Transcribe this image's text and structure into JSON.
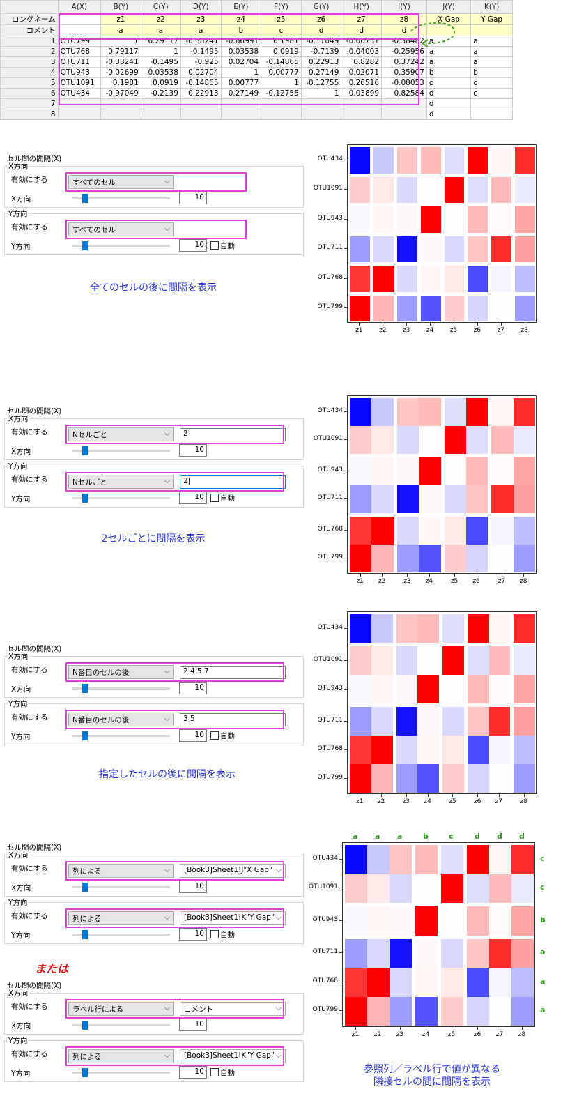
{
  "sheet": {
    "columns": [
      "A(X)",
      "B(Y)",
      "C(Y)",
      "D(Y)",
      "E(Y)",
      "F(Y)",
      "G(Y)",
      "H(Y)",
      "I(Y)",
      "J(Y)",
      "K(Y)"
    ],
    "longname_label": "ロングネーム",
    "comment_label": "コメント",
    "longnames": [
      "",
      "z1",
      "z2",
      "z3",
      "z4",
      "z5",
      "z6",
      "z7",
      "z8",
      "X Gap",
      "Y Gap"
    ],
    "comments": [
      "",
      "a",
      "a",
      "a",
      "b",
      "c",
      "d",
      "d",
      "d",
      "",
      ""
    ],
    "rows": [
      {
        "n": "1",
        "cells": [
          "OTU799",
          "1",
          "0.29117",
          "-0.38241",
          "-0.66991",
          "0.1981",
          "-0.17049",
          "-0.00731",
          "-0.38482",
          "a",
          "a"
        ]
      },
      {
        "n": "2",
        "cells": [
          "OTU768",
          "0.79117",
          "1",
          "-0.1495",
          "0.03538",
          "0.0919",
          "-0.7139",
          "-0.04003",
          "-0.25956",
          "a",
          "a"
        ]
      },
      {
        "n": "3",
        "cells": [
          "OTU711",
          "-0.38241",
          "-0.1495",
          "-0.925",
          "0.02704",
          "-0.14865",
          "0.22913",
          "0.8282",
          "0.37242",
          "a",
          "a"
        ]
      },
      {
        "n": "4",
        "cells": [
          "OTU943",
          "-0.02699",
          "0.03538",
          "0.02704",
          "1",
          "0.00777",
          "0.27149",
          "0.02071",
          "0.35907",
          "b",
          "b"
        ]
      },
      {
        "n": "5",
        "cells": [
          "OTU1091",
          "0.1981",
          "0.0919",
          "-0.14865",
          "0.00777",
          "1",
          "-0.12755",
          "0.26516",
          "-0.08053",
          "c",
          "c"
        ]
      },
      {
        "n": "6",
        "cells": [
          "OTU434",
          "-0.97049",
          "-0.2139",
          "0.22913",
          "0.27149",
          "-0.12755",
          "1",
          "0.03899",
          "0.82584",
          "d",
          "c"
        ]
      },
      {
        "n": "7",
        "cells": [
          "",
          "",
          "",
          "",
          "",
          "",
          "",
          "",
          "",
          "d",
          ""
        ]
      },
      {
        "n": "8",
        "cells": [
          "",
          "",
          "",
          "",
          "",
          "",
          "",
          "",
          "",
          "d",
          ""
        ]
      }
    ]
  },
  "dialog": {
    "title": "セル間の間隔(X)",
    "x_group": "X方向",
    "y_group": "Y方向",
    "enable_label": "有効にする",
    "x_dir": "X方向",
    "y_dir": "Y方向",
    "auto": "自動",
    "gap_value": "10"
  },
  "panels": [
    {
      "x_mode": "すべてのセル",
      "x_extra": "",
      "y_mode": "すべてのセル",
      "y_extra": ""
    },
    {
      "x_mode": "Nセルごと",
      "x_extra": "2",
      "y_mode": "Nセルごと",
      "y_extra": "2|"
    },
    {
      "x_mode": "N番目のセルの後",
      "x_extra": "2 4 5 7",
      "y_mode": "N番目のセルの後",
      "y_extra": "3 5"
    },
    {
      "x_mode": "列による",
      "x_extra": "[Book3]Sheet1!J\"X Gap\"",
      "y_mode": "列による",
      "y_extra": "[Book3]Sheet1!K\"Y Gap\""
    },
    {
      "x_mode": "ラベル行による",
      "x_extra": "コメント",
      "y_mode": "列による",
      "y_extra": "[Book3]Sheet1!K\"Y Gap\""
    }
  ],
  "captions": {
    "c1": "全てのセルの後に間隔を表示",
    "c2": "2セルごとに間隔を表示",
    "c3": "指定したセルの後に間隔を表示",
    "c4_line1": "参照列／ラベル行で値が異なる",
    "c4_line2": "隣接セルの間に間隔を表示",
    "or": "または"
  },
  "heatmap": {
    "x_labels": [
      "z1",
      "z2",
      "z3",
      "z4",
      "z5",
      "z6",
      "z7",
      "z8"
    ],
    "y_labels": [
      "OTU434",
      "OTU1091",
      "OTU943",
      "OTU711",
      "OTU768",
      "OTU799"
    ],
    "x_groups": [
      "a",
      "a",
      "a",
      "b",
      "c",
      "d",
      "d",
      "d"
    ],
    "y_groups": [
      "c",
      "c",
      "b",
      "a",
      "a",
      "a"
    ],
    "values": [
      [
        -0.97049,
        -0.2139,
        0.22913,
        0.27149,
        -0.12755,
        1,
        0.03899,
        0.82584
      ],
      [
        0.1981,
        0.0919,
        -0.14865,
        0.00777,
        1,
        -0.12755,
        0.26516,
        -0.08053
      ],
      [
        -0.02699,
        0.03538,
        0.02704,
        1,
        0.00777,
        0.27149,
        0.02071,
        0.35907
      ],
      [
        -0.38241,
        -0.1495,
        -0.925,
        0.02704,
        -0.14865,
        0.22913,
        0.8282,
        0.37242
      ],
      [
        0.79117,
        1,
        -0.1495,
        0.03538,
        0.0919,
        -0.7139,
        -0.04003,
        -0.25956
      ],
      [
        1,
        0.29117,
        -0.38241,
        -0.66991,
        0.1981,
        -0.17049,
        -0.00731,
        -0.38482
      ]
    ],
    "colors": {
      "negative": "#0000ff",
      "zero": "#ffffff",
      "positive": "#ff0000"
    }
  },
  "chart_data": [
    {
      "type": "heatmap",
      "x": [
        "z1",
        "z2",
        "z3",
        "z4",
        "z5",
        "z6",
        "z7",
        "z8"
      ],
      "y": [
        "OTU434",
        "OTU1091",
        "OTU943",
        "OTU711",
        "OTU768",
        "OTU799"
      ],
      "range": [
        -1,
        1
      ],
      "gaps": "all cells"
    },
    {
      "type": "heatmap",
      "x": [
        "z1",
        "z2",
        "z3",
        "z4",
        "z5",
        "z6",
        "z7",
        "z8"
      ],
      "y": [
        "OTU434",
        "OTU1091",
        "OTU943",
        "OTU711",
        "OTU768",
        "OTU799"
      ],
      "range": [
        -1,
        1
      ],
      "gaps": "every 2 cells"
    },
    {
      "type": "heatmap",
      "x": [
        "z1",
        "z2",
        "z3",
        "z4",
        "z5",
        "z6",
        "z7",
        "z8"
      ],
      "y": [
        "OTU434",
        "OTU1091",
        "OTU943",
        "OTU711",
        "OTU768",
        "OTU799"
      ],
      "range": [
        -1,
        1
      ],
      "gaps": "after cells x: 2 4 5 7, y: 3 5"
    },
    {
      "type": "heatmap",
      "x": [
        "z1",
        "z2",
        "z3",
        "z4",
        "z5",
        "z6",
        "z7",
        "z8"
      ],
      "y": [
        "OTU434",
        "OTU1091",
        "OTU943",
        "OTU711",
        "OTU768",
        "OTU799"
      ],
      "range": [
        -1,
        1
      ],
      "gaps": "by column"
    }
  ]
}
